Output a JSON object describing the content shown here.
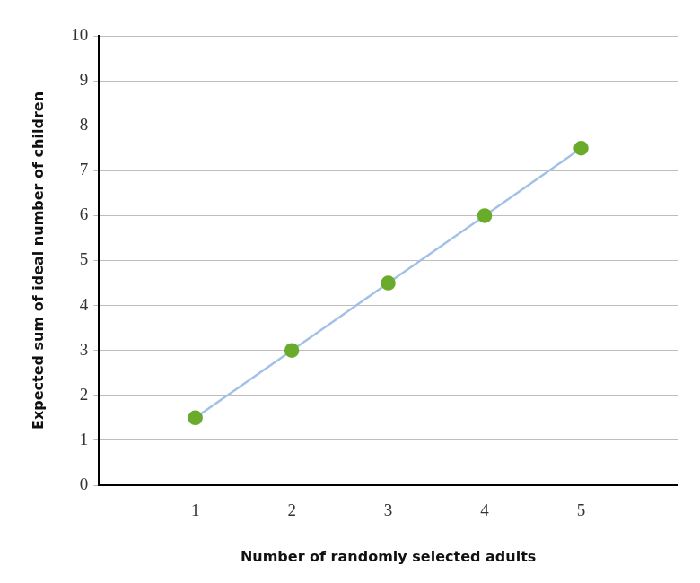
{
  "chart_data": {
    "type": "line",
    "x_label": "Number of randomly selected adults",
    "y_label": "Expected sum of ideal number of children",
    "x": [
      1,
      2,
      3,
      4,
      5
    ],
    "values": [
      1.5,
      3,
      4.5,
      6,
      7.5
    ],
    "color": "#6aab2b",
    "marker": "circle",
    "xlim": [
      0,
      6
    ],
    "xticks": [
      1,
      2,
      3,
      4,
      5
    ],
    "ylim": [
      0,
      10
    ],
    "yticks": [
      0,
      1,
      2,
      3,
      4,
      5,
      6,
      7,
      8,
      9,
      10
    ],
    "grid": true
  }
}
